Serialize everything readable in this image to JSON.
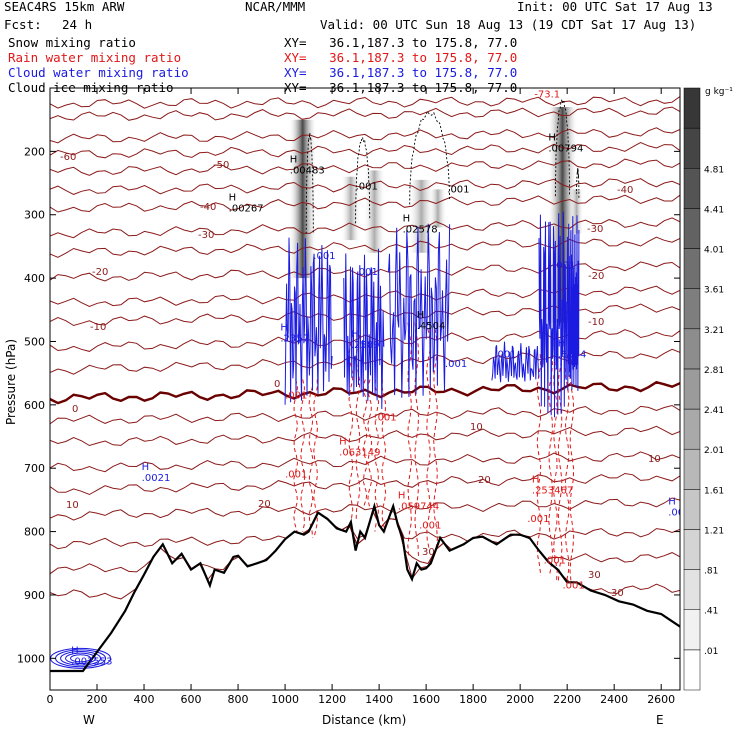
{
  "header": {
    "model": "SEAC4RS 15km ARW",
    "org": "NCAR/MMM",
    "init": "Init: 00 UTC Sat 17 Aug 13",
    "fcst_label": "Fcst:",
    "fcst_value": "24 h",
    "valid": "Valid: 00 UTC Sun 18 Aug 13 (19 CDT Sat 17 Aug 13)"
  },
  "legend": [
    {
      "name": "Snow mixing ratio",
      "color": "#000000",
      "xy": "XY=   36.1,187.3 to 175.8, 77.0"
    },
    {
      "name": "Rain water mixing ratio",
      "color": "#e01818",
      "xy": "XY=   36.1,187.3 to 175.8, 77.0"
    },
    {
      "name": "Cloud water mixing ratio",
      "color": "#1a1ae0",
      "xy": "XY=   36.1,187.3 to 175.8, 77.0"
    },
    {
      "name": "Cloud ice mixing ratio",
      "color": "#000000",
      "xy": "XY=   36.1,187.3 to 175.8, 77.0"
    }
  ],
  "chart_data": {
    "type": "cross-section",
    "xlabel": "Distance (km)",
    "ylabel": "Pressure (hPa)",
    "xlim": [
      0,
      2680
    ],
    "ylim": [
      1050,
      100
    ],
    "x_ticks": [
      0,
      200,
      400,
      600,
      800,
      1000,
      1200,
      1400,
      1600,
      1800,
      2000,
      2200,
      2400,
      2600
    ],
    "y_ticks": [
      200,
      300,
      400,
      500,
      600,
      700,
      800,
      900,
      1000
    ],
    "end_labels": [
      "W",
      "E"
    ],
    "colorbar": {
      "unit": "g kg⁻¹",
      "labels": [
        ".01",
        ".41",
        ".81",
        "1.21",
        "1.61",
        "2.01",
        "2.41",
        "2.81",
        "3.21",
        "3.61",
        "4.01",
        "4.41",
        "4.81"
      ]
    },
    "temperature_isotherms": [
      {
        "label": "-60",
        "color": "#8b1a1a"
      },
      {
        "label": "-50",
        "color": "#8b1a1a"
      },
      {
        "label": "-40",
        "color": "#8b1a1a"
      },
      {
        "label": "-30",
        "color": "#8b1a1a"
      },
      {
        "label": "-20",
        "color": "#8b1a1a"
      },
      {
        "label": "-10",
        "color": "#8b1a1a"
      },
      {
        "label": "0",
        "color": "#7a0000"
      },
      {
        "label": "10",
        "color": "#8b1a1a"
      },
      {
        "label": "20",
        "color": "#8b1a1a"
      },
      {
        "label": "30",
        "color": "#8b1a1a"
      }
    ],
    "terrain": {
      "x": [
        0,
        60,
        120,
        140,
        160,
        200,
        260,
        320,
        340,
        360,
        400,
        440,
        480,
        520,
        560,
        600,
        640,
        680,
        700,
        740,
        780,
        800,
        840,
        880,
        920,
        960,
        1000,
        1040,
        1080,
        1100,
        1140,
        1180,
        1220,
        1260,
        1280,
        1300,
        1320,
        1340,
        1380,
        1400,
        1420,
        1440,
        1460,
        1480,
        1500,
        1520,
        1540,
        1560,
        1580,
        1600,
        1620,
        1660,
        1700,
        1760,
        1800,
        1840,
        1900,
        1960,
        2000,
        2040,
        2080,
        2120,
        2160,
        2200,
        2240,
        2300,
        2360,
        2420,
        2480,
        2540,
        2600,
        2640,
        2680
      ],
      "p": [
        1020,
        1020,
        1020,
        1020,
        1010,
        990,
        960,
        925,
        910,
        895,
        868,
        840,
        820,
        850,
        835,
        860,
        850,
        885,
        860,
        865,
        840,
        838,
        855,
        850,
        845,
        830,
        812,
        800,
        805,
        800,
        770,
        780,
        795,
        800,
        785,
        830,
        800,
        810,
        760,
        790,
        800,
        780,
        760,
        790,
        810,
        860,
        875,
        850,
        860,
        858,
        850,
        810,
        830,
        820,
        810,
        808,
        820,
        805,
        805,
        810,
        830,
        848,
        860,
        880,
        880,
        893,
        900,
        910,
        915,
        925,
        930,
        940,
        950
      ]
    },
    "maxima_labels": [
      {
        "type": "H",
        "value": ".00267",
        "x": 760,
        "p": 295,
        "color": "#000000"
      },
      {
        "type": "H",
        "value": ".00483",
        "x": 1020,
        "p": 235,
        "color": "#000000"
      },
      {
        "type": "H",
        "value": ".02578",
        "x": 1500,
        "p": 328,
        "color": "#000000"
      },
      {
        "type": "H",
        "value": ".00794",
        "x": 2120,
        "p": 200,
        "color": "#000000"
      },
      {
        "type": "",
        "value": "-73.1",
        "x": 2060,
        "p": 115,
        "color": "#e01818"
      },
      {
        "type": "H",
        "value": ".2357",
        "x": 980,
        "p": 500,
        "color": "#1a1ae0"
      },
      {
        "type": "H",
        "value": ".2589",
        "x": 1280,
        "p": 510,
        "color": "#1a1ae0"
      },
      {
        "type": "H",
        "value": ".4504",
        "x": 1560,
        "p": 480,
        "color": "#000000"
      },
      {
        "type": "H",
        "value": ".6554",
        "x": 2160,
        "p": 525,
        "color": "#1a1ae0"
      },
      {
        "type": "H",
        "value": ".0021",
        "x": 390,
        "p": 720,
        "color": "#1a1ae0"
      },
      {
        "type": "H",
        "value": ".063149",
        "x": 1230,
        "p": 680,
        "color": "#e01818"
      },
      {
        "type": "H",
        "value": ".059744",
        "x": 1480,
        "p": 765,
        "color": "#e01818"
      },
      {
        "type": "H",
        "value": ".253467",
        "x": 2050,
        "p": 740,
        "color": "#e01818"
      },
      {
        "type": "H",
        "value": ".002",
        "x": 2630,
        "p": 775,
        "color": "#1a1ae0"
      },
      {
        "type": "H",
        "value": ".007553",
        "x": 90,
        "p": 1010,
        "color": "#1a1ae0"
      }
    ],
    "minor_labels": [
      {
        "value": ".001",
        "x": 1300,
        "p": 260,
        "color": "#000000"
      },
      {
        "value": ".001",
        "x": 1690,
        "p": 265,
        "color": "#000000"
      },
      {
        "value": ".001",
        "x": 1120,
        "p": 370,
        "color": "#1a1ae0"
      },
      {
        "value": ".001",
        "x": 1300,
        "p": 395,
        "color": "#1a1ae0"
      },
      {
        "value": ".001",
        "x": 2140,
        "p": 385,
        "color": "#1a1ae0"
      },
      {
        "value": ".001",
        "x": 1890,
        "p": 525,
        "color": "#1a1ae0"
      },
      {
        "value": ".001",
        "x": 1680,
        "p": 540,
        "color": "#1a1ae0"
      },
      {
        "value": ".001",
        "x": 1000,
        "p": 590,
        "color": "#e01818"
      },
      {
        "value": ".001",
        "x": 1380,
        "p": 625,
        "color": "#e01818"
      },
      {
        "value": ".001",
        "x": 1000,
        "p": 715,
        "color": "#e01818"
      },
      {
        "value": ".001",
        "x": 1570,
        "p": 795,
        "color": "#e01818"
      },
      {
        "value": ".001",
        "x": 2030,
        "p": 785,
        "color": "#e01818"
      },
      {
        "value": ".001",
        "x": 2100,
        "p": 850,
        "color": "#e01818"
      },
      {
        "value": ".001",
        "x": 2180,
        "p": 890,
        "color": "#e01818"
      }
    ]
  }
}
